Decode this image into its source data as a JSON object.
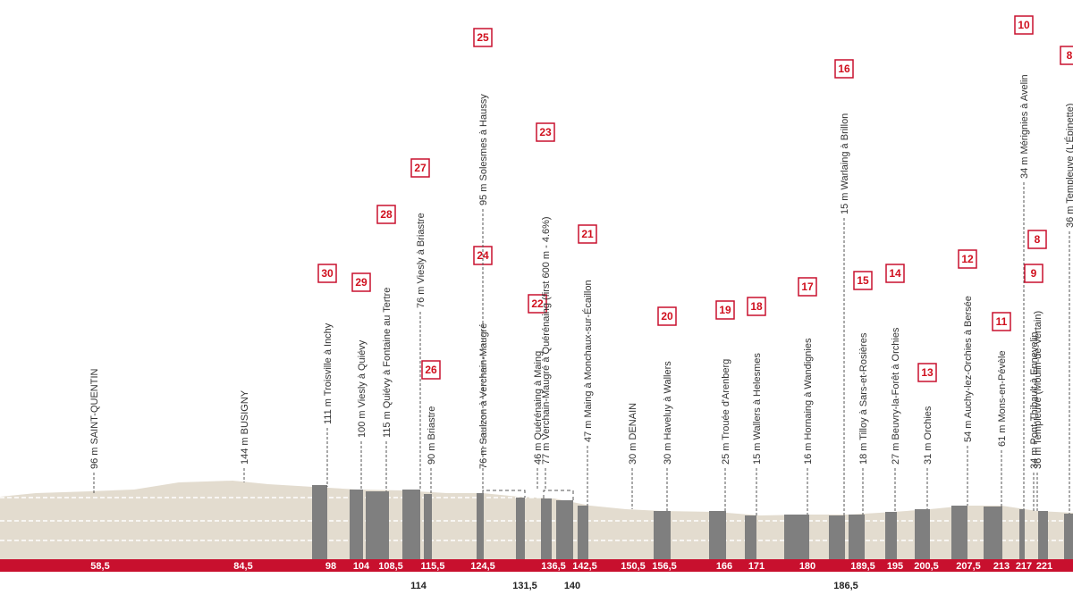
{
  "points": [
    {
      "label": "96 m SAINT-QUENTIN"
    },
    {
      "label": "144 m BUSIGNY"
    },
    {
      "label": "111 m Troisville à Inchy",
      "sector": 30
    },
    {
      "label": "100 m Viesly à Quiévy",
      "sector": 29
    },
    {
      "label": "115 m Quiévy à Fontaine au Tertre",
      "sector": 28
    },
    {
      "label": "76 m Viesly à Briastre",
      "sector": 27
    },
    {
      "label": "90 m Briastre",
      "sector": 26
    },
    {
      "label": "76 m Saulzon à Verchain-Maugré",
      "sector": 24
    },
    {
      "label": "95 m Solesmes à Haussy",
      "sector": 25
    },
    {
      "label": "46 m Quérénaing à Maing",
      "sector": 22
    },
    {
      "label": "77 m Verchain-Maugré à Quérénaing (first 600 m - 4.6%)",
      "sector": 23
    },
    {
      "label": "47 m Maing à Monchaux-sur-Écaillon",
      "sector": 21
    },
    {
      "label": "30 m DENAIN"
    },
    {
      "label": "30 m Haveluy à Wallers",
      "sector": 20
    },
    {
      "label": "25 m Trouée d'Arenberg",
      "sector": 19
    },
    {
      "label": "15 m Wallers à Helesmes",
      "sector": 18
    },
    {
      "label": "16 m Hornaing à Wandignies",
      "sector": 17
    },
    {
      "label": "15 m Warlaing à Brillon",
      "sector": 16
    },
    {
      "label": "18 m Tilloy à Sars-et-Rosières",
      "sector": 15
    },
    {
      "label": "27 m Beuvry-la-Forêt à Orchies",
      "sector": 14
    },
    {
      "label": "31 m Orchies",
      "sector": 13
    },
    {
      "label": "54 m Auchy-lez-Orchies à Bersée",
      "sector": 12
    },
    {
      "label": "61 m Mons-en-Pévèle",
      "sector": 11
    },
    {
      "label": "34 m Mérignies à Avelin",
      "sector": 10
    },
    {
      "label": "34 m Pont-Thibault à Ennevelin",
      "sector": 9
    },
    {
      "label": "36 m Templeuve (Moulin-de-Vertain)",
      "sector": 8
    },
    {
      "label": "36 m Templeuve (L'Épinette)",
      "sector": 8
    }
  ],
  "km_band": [
    "58,5",
    "84,5",
    "98",
    "104",
    "108,5",
    "115,5",
    "124,5",
    "136,5",
    "142,5",
    "150,5",
    "156,5",
    "166",
    "171",
    "180",
    "189,5",
    "195",
    "200,5",
    "207,5",
    "213",
    "217",
    "221"
  ],
  "km_below": [
    "114",
    "131,5",
    "140",
    "186,5"
  ]
}
